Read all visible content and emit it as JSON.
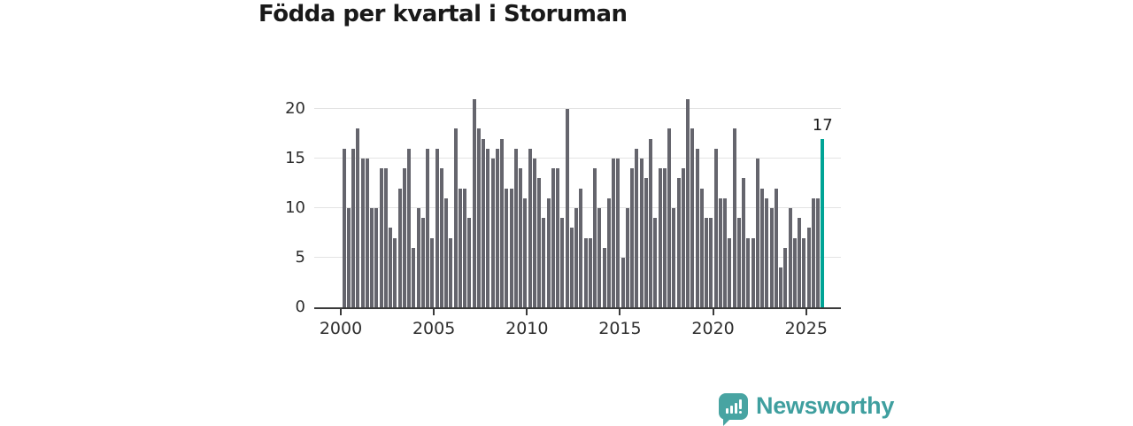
{
  "title": "Födda per kvartal i Storuman",
  "branding": {
    "name": "Newsworthy"
  },
  "chart_data": {
    "type": "bar",
    "title": "Födda per kvartal i Storuman",
    "period": "quarterly",
    "x_start": "2000 Q1",
    "x_end": "2025 Q4",
    "values": [
      16,
      10,
      16,
      18,
      15,
      15,
      10,
      10,
      14,
      14,
      8,
      7,
      12,
      14,
      16,
      6,
      10,
      9,
      16,
      7,
      16,
      14,
      11,
      7,
      18,
      12,
      12,
      9,
      21,
      18,
      17,
      16,
      15,
      16,
      17,
      12,
      12,
      16,
      14,
      11,
      16,
      15,
      13,
      9,
      11,
      14,
      14,
      9,
      20,
      8,
      10,
      12,
      7,
      7,
      14,
      10,
      6,
      11,
      15,
      15,
      5,
      10,
      14,
      16,
      15,
      13,
      17,
      9,
      14,
      14,
      18,
      10,
      13,
      14,
      21,
      18,
      16,
      12,
      9,
      9,
      16,
      11,
      11,
      7,
      18,
      9,
      13,
      7,
      7,
      15,
      12,
      11,
      10,
      12,
      4,
      6,
      10,
      7,
      9,
      7,
      8,
      11,
      11,
      17
    ],
    "x_tick_labels": [
      "2000",
      "2005",
      "2010",
      "2015",
      "2020",
      "2025"
    ],
    "y_ticks": [
      0,
      5,
      10,
      15,
      20
    ],
    "ylim": [
      0,
      21.4
    ],
    "grid": "horizontal",
    "legend": "none",
    "bar_color": "#65656d",
    "highlight_color": "#00a496",
    "highlight_index": 103,
    "highlight_value_label": "17"
  }
}
